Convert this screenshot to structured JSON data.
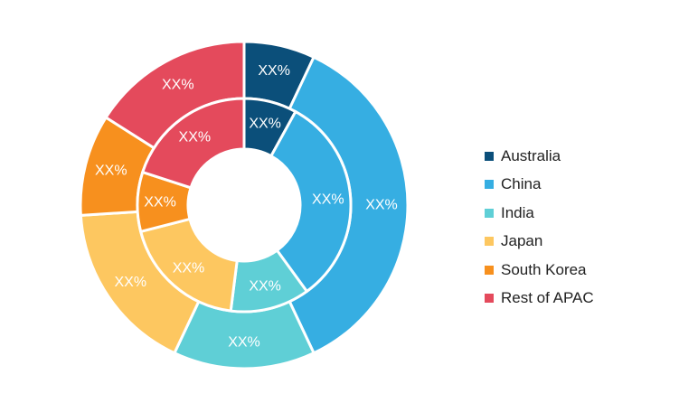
{
  "chart_data": {
    "type": "donut",
    "categories": [
      "Australia",
      "China",
      "India",
      "Japan",
      "South Korea",
      "Rest of APAC"
    ],
    "colors": [
      "#0b4f7a",
      "#36aee2",
      "#5fcfd6",
      "#fdc760",
      "#f7901e",
      "#e44a5c"
    ],
    "series": [
      {
        "ring": "outer",
        "values": [
          7,
          36,
          14,
          17,
          10,
          16
        ],
        "labels": [
          "XX%",
          "XX%",
          "XX%",
          "XX%",
          "XX%",
          "XX%"
        ]
      },
      {
        "ring": "inner",
        "values": [
          8,
          32,
          12,
          19,
          9,
          20
        ],
        "labels": [
          "XX%",
          "XX%",
          "XX%",
          "XX%",
          "XX%",
          "XX%"
        ]
      }
    ],
    "legend": {
      "position": "right",
      "entries": [
        "Australia",
        "China",
        "India",
        "Japan",
        "South Korea",
        "Rest of APAC"
      ]
    }
  }
}
